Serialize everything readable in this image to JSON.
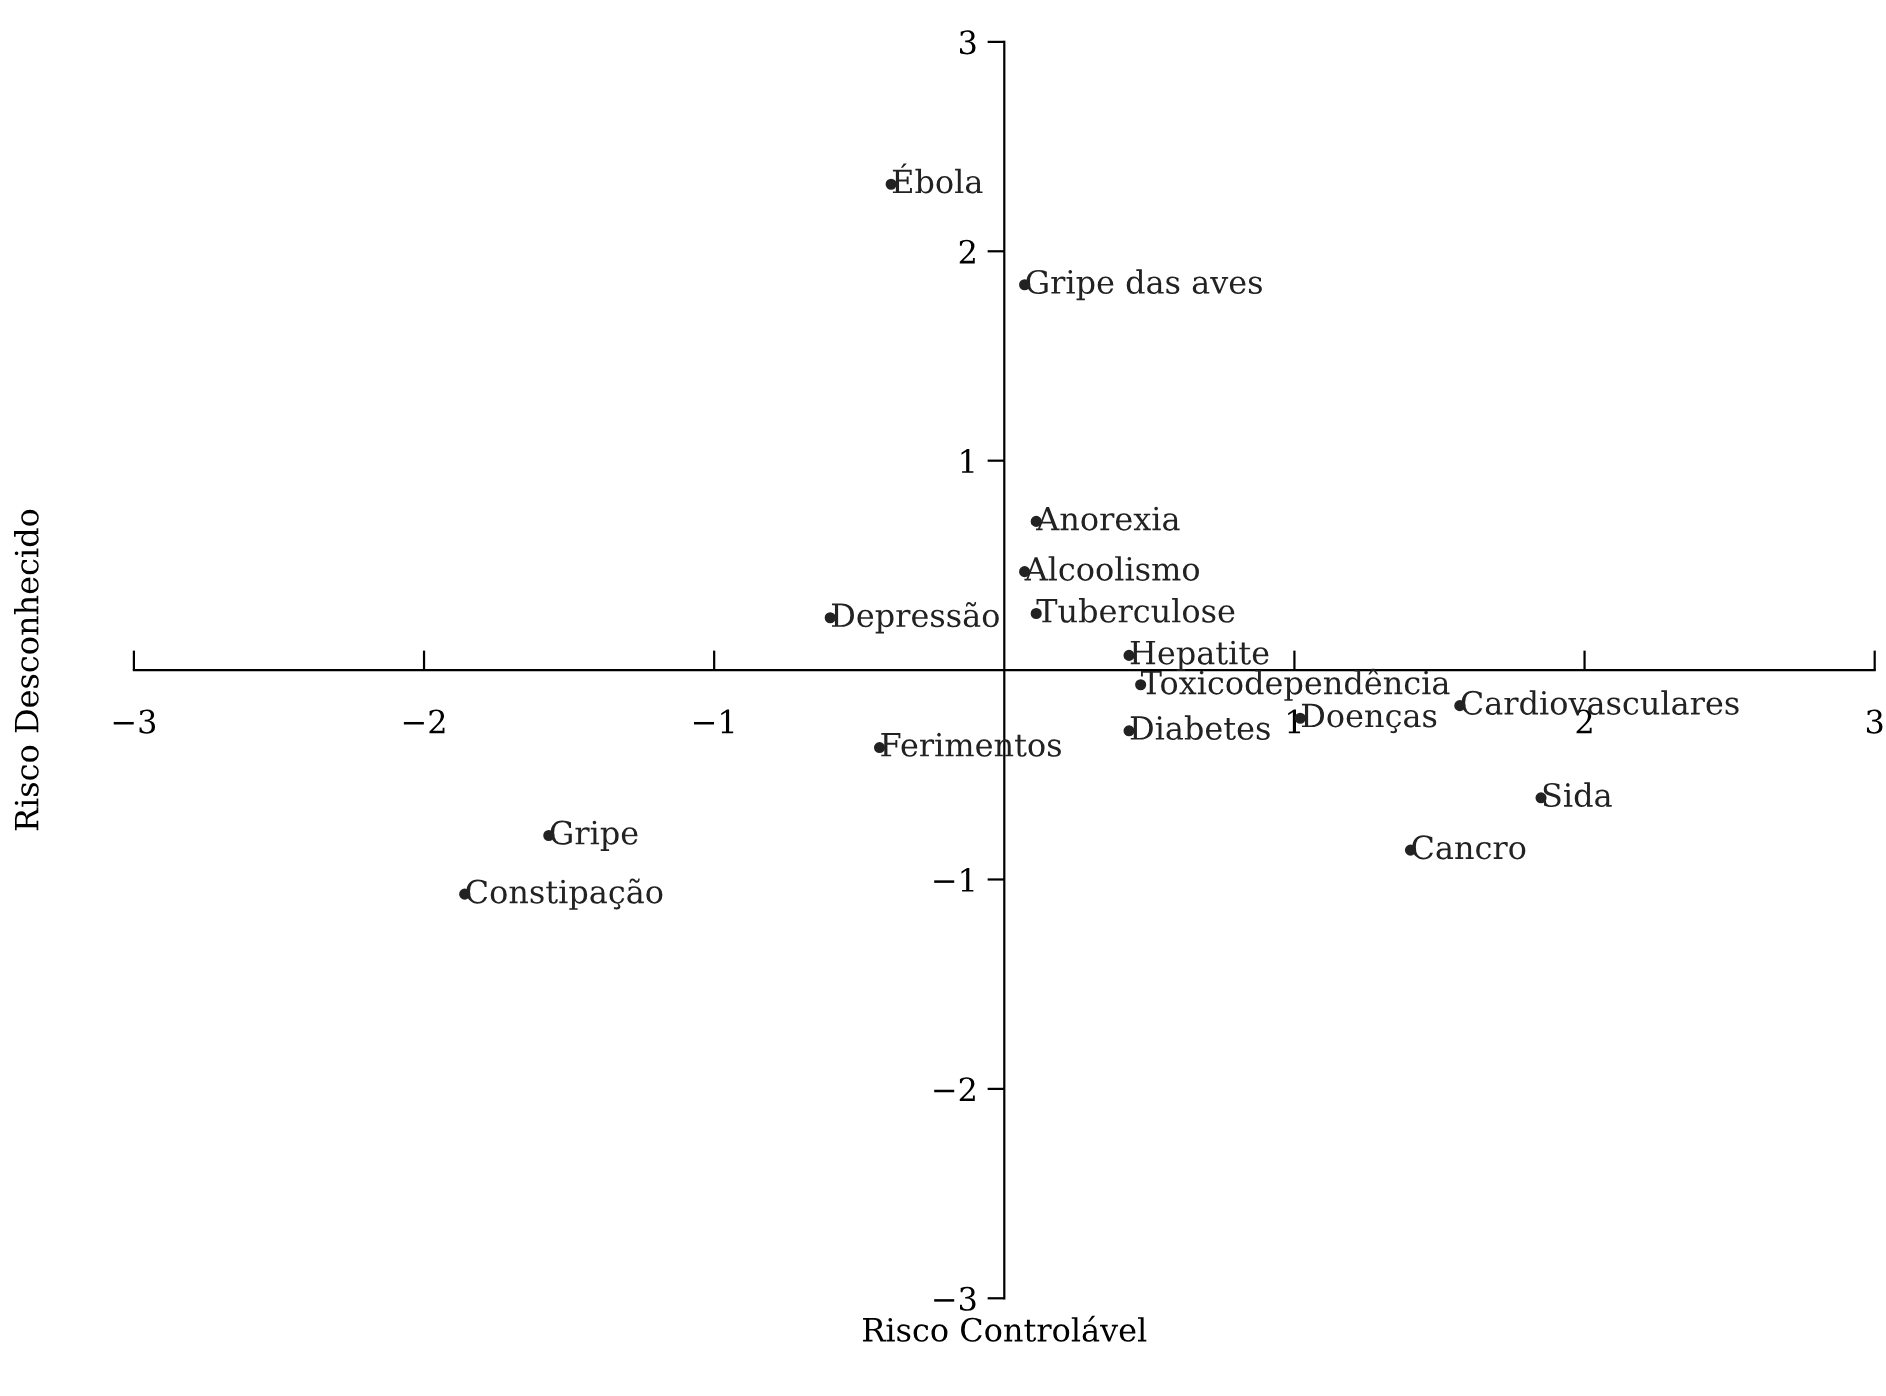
{
  "chart_data": {
    "type": "scatter",
    "xlabel": "Risco Controlável",
    "ylabel": "Risco Desconhecido",
    "marker": "circle",
    "color": "#222222",
    "grid": false,
    "xlim": [
      -3,
      3
    ],
    "ylim": [
      -3,
      3
    ],
    "xticks": [
      {
        "value": -3,
        "label": "−3"
      },
      {
        "value": -2,
        "label": "−2"
      },
      {
        "value": -1,
        "label": "−1"
      },
      1,
      2,
      3
    ],
    "yticks": [
      {
        "value": -3,
        "label": "−3"
      },
      {
        "value": -2,
        "label": "−2"
      },
      {
        "value": -1,
        "label": "−1"
      },
      1,
      2,
      3
    ],
    "x": [
      -0.39,
      0.07,
      0.11,
      0.07,
      -0.6,
      0.11,
      0.43,
      0.47,
      1.57,
      1.02,
      0.43,
      -0.43,
      1.85,
      1.4,
      -1.57,
      -1.86
    ],
    "values": [
      2.32,
      1.84,
      0.71,
      0.47,
      0.25,
      0.27,
      0.07,
      -0.07,
      -0.17,
      -0.23,
      -0.29,
      -0.37,
      -0.61,
      -0.86,
      -0.79,
      -1.07
    ],
    "value_labels": [
      "Ébola",
      "Gripe das aves",
      "Anorexia",
      "Alcoolismo",
      "Depressão",
      "Tuberculose",
      "Hepatite",
      "Toxicodependência",
      "Cardiovasculares",
      "Doenças",
      "Diabetes",
      "Ferimentos",
      "Sida",
      "Cancro",
      "Gripe",
      "Constipação"
    ]
  }
}
